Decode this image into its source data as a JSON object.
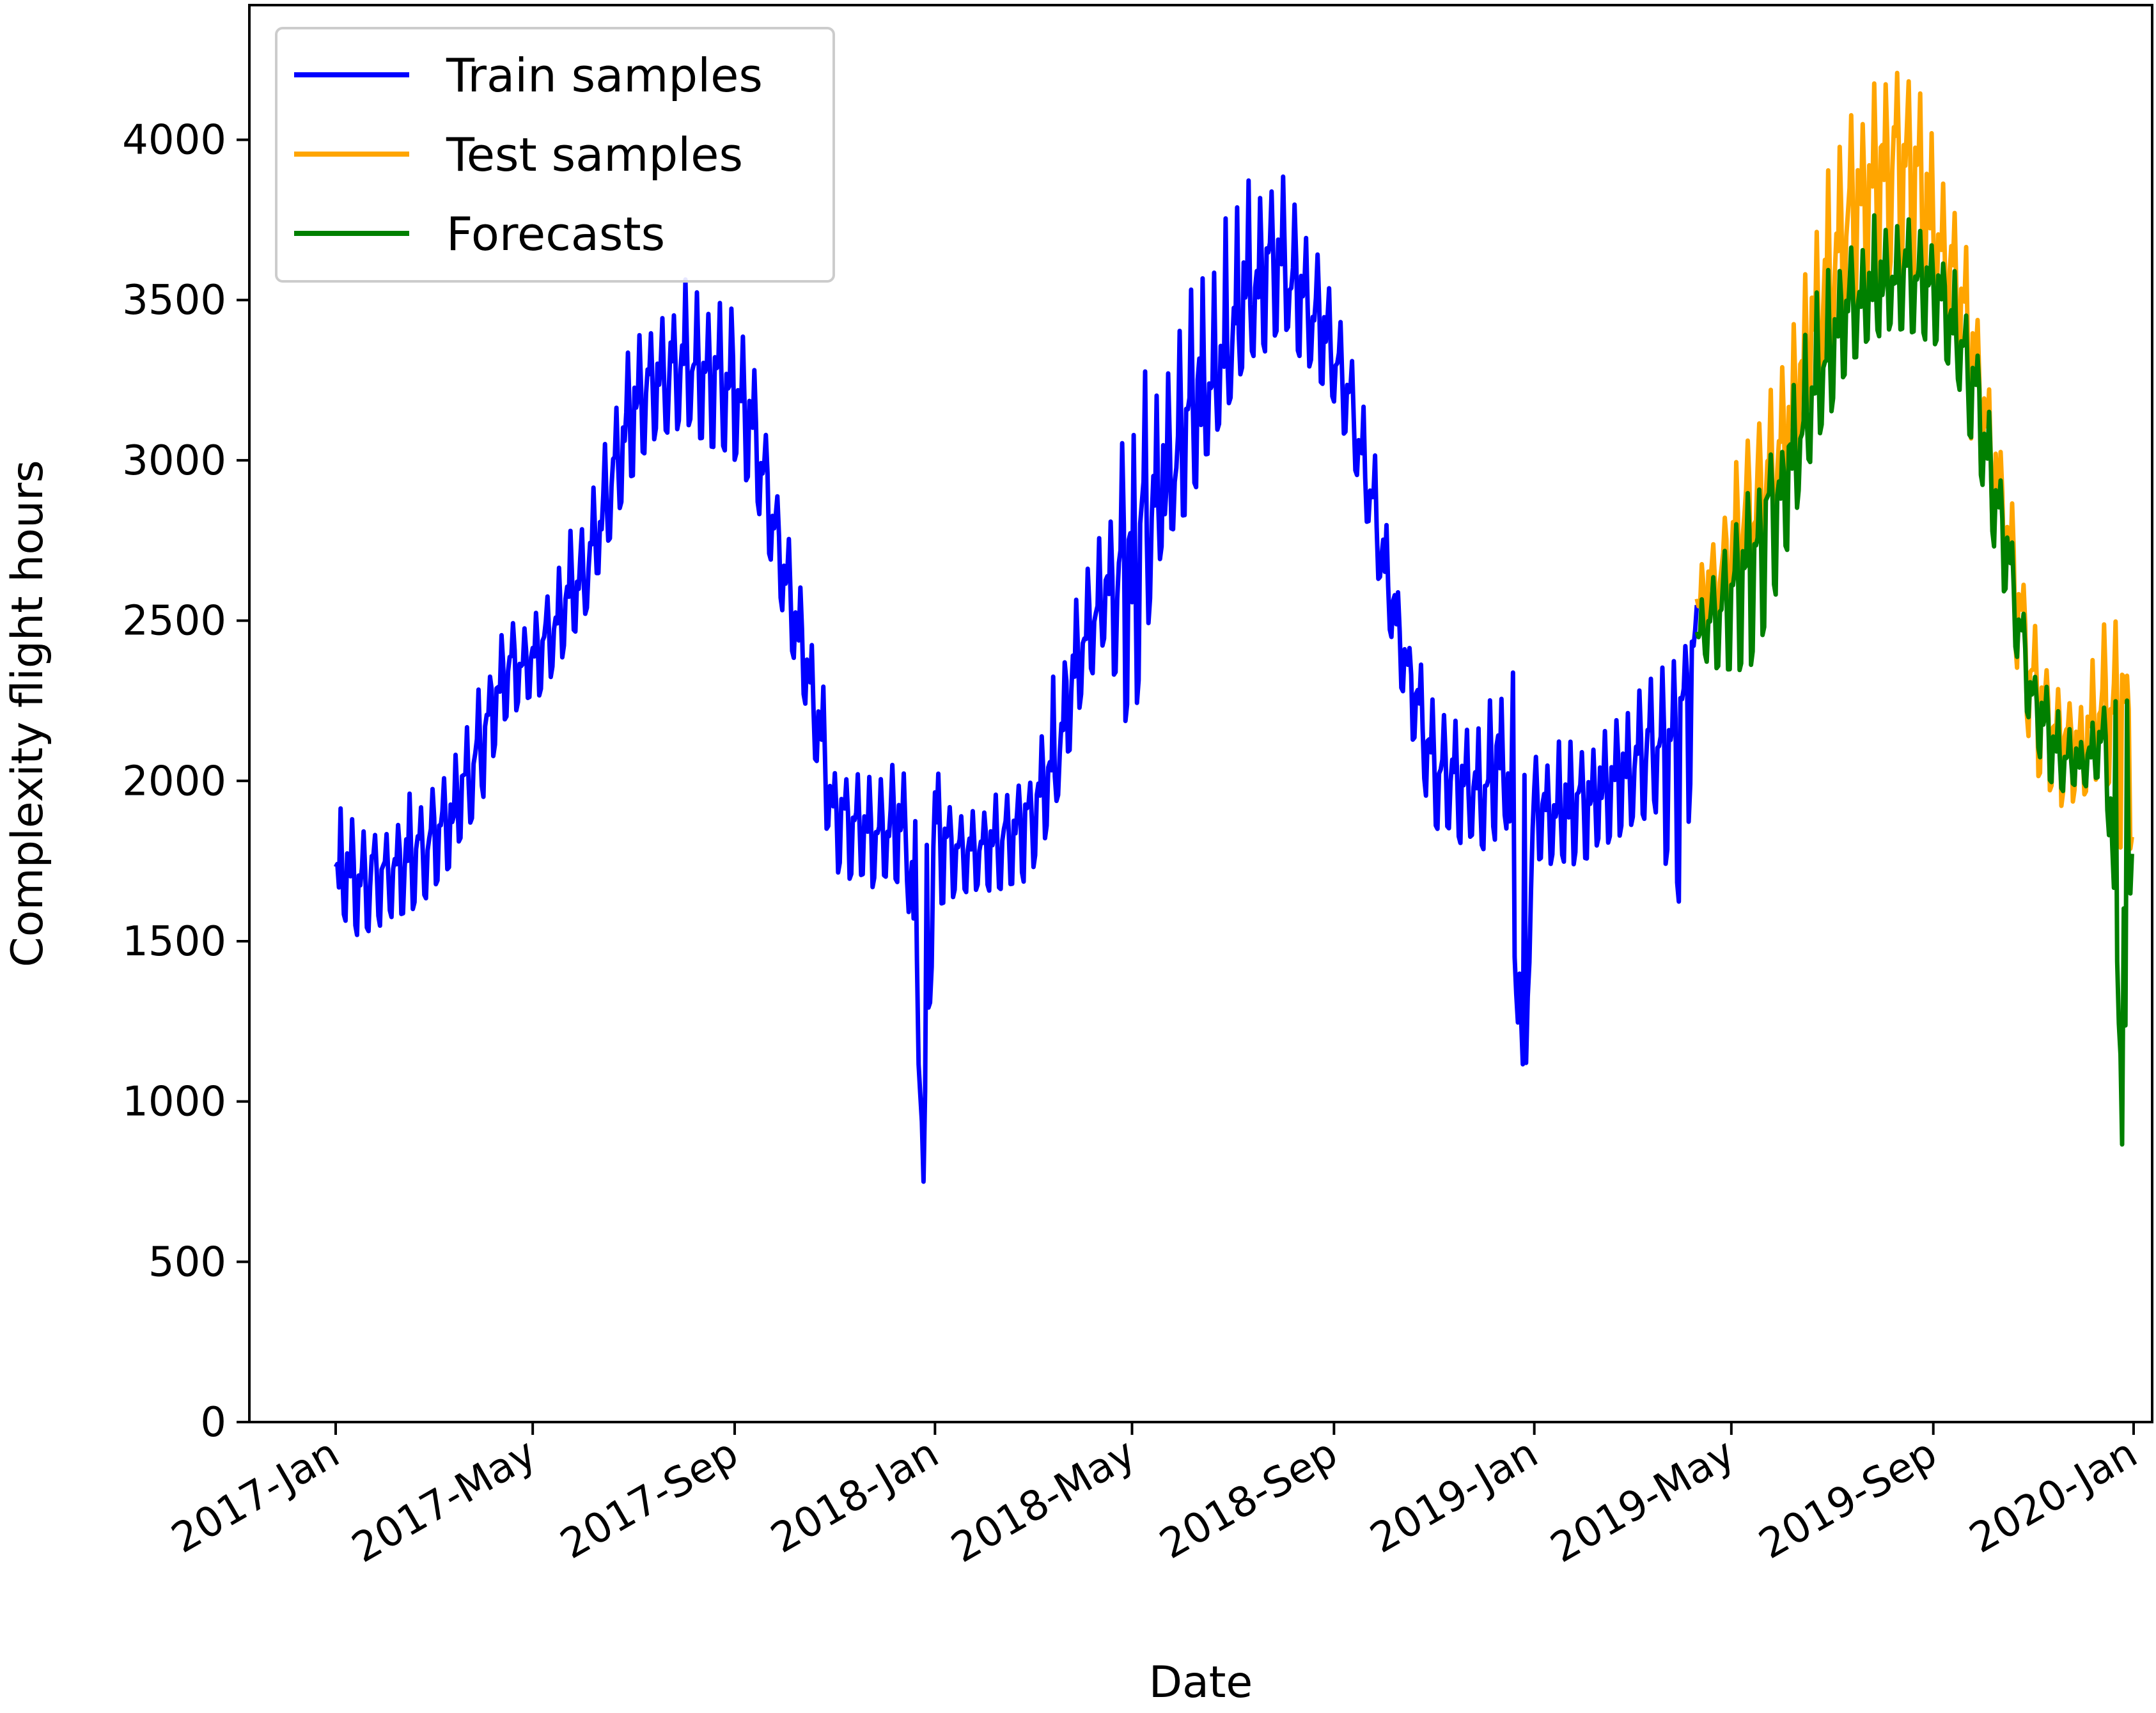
{
  "chart_data": {
    "type": "line",
    "xlabel": "Date",
    "ylabel": "Complexity flight hours",
    "ylim": [
      0,
      4420
    ],
    "xlim": [
      "2016-12-01",
      "2020-01-31"
    ],
    "yticks": [
      0,
      500,
      1000,
      1500,
      2000,
      2500,
      3000,
      3500,
      4000
    ],
    "xticks": [
      {
        "date": "2017-01-01",
        "label": "2017-Jan"
      },
      {
        "date": "2017-05-01",
        "label": "2017-May"
      },
      {
        "date": "2017-09-01",
        "label": "2017-Sep"
      },
      {
        "date": "2018-01-01",
        "label": "2018-Jan"
      },
      {
        "date": "2018-05-01",
        "label": "2018-May"
      },
      {
        "date": "2018-09-01",
        "label": "2018-Sep"
      },
      {
        "date": "2019-01-01",
        "label": "2019-Jan"
      },
      {
        "date": "2019-05-01",
        "label": "2019-May"
      },
      {
        "date": "2019-09-01",
        "label": "2019-Sep"
      },
      {
        "date": "2020-01-01",
        "label": "2020-Jan"
      }
    ],
    "grid": false,
    "legend_position": "top-left",
    "series": [
      {
        "name": "Train samples",
        "color": "#0000ff",
        "x": [
          "2017-01-01",
          "2017-01-15",
          "2017-02-01",
          "2017-02-15",
          "2017-03-01",
          "2017-03-15",
          "2017-04-01",
          "2017-04-15",
          "2017-05-01",
          "2017-05-15",
          "2017-06-01",
          "2017-06-15",
          "2017-07-01",
          "2017-07-15",
          "2017-08-01",
          "2017-08-15",
          "2017-09-01",
          "2017-09-15",
          "2017-10-01",
          "2017-10-15",
          "2017-11-01",
          "2017-11-15",
          "2017-12-01",
          "2017-12-15",
          "2017-12-25",
          "2018-01-01",
          "2018-01-15",
          "2018-02-01",
          "2018-02-15",
          "2018-03-01",
          "2018-03-15",
          "2018-04-01",
          "2018-04-15",
          "2018-05-01",
          "2018-05-15",
          "2018-06-01",
          "2018-06-15",
          "2018-07-01",
          "2018-07-15",
          "2018-08-01",
          "2018-08-15",
          "2018-09-01",
          "2018-09-15",
          "2018-10-01",
          "2018-10-15",
          "2018-11-01",
          "2018-11-15",
          "2018-12-01",
          "2018-12-15",
          "2018-12-25",
          "2019-01-01",
          "2019-01-15",
          "2019-02-01",
          "2019-02-15",
          "2019-03-01",
          "2019-03-15",
          "2019-04-01",
          "2019-04-10"
        ],
        "y": [
          1700,
          1680,
          1720,
          1760,
          1820,
          1900,
          2150,
          2350,
          2400,
          2500,
          2650,
          2850,
          3100,
          3250,
          3300,
          3280,
          3250,
          3050,
          2650,
          2350,
          1900,
          1880,
          1850,
          1880,
          870,
          1900,
          1780,
          1800,
          1850,
          1880,
          2050,
          2450,
          2600,
          2650,
          2850,
          3000,
          3200,
          3400,
          3550,
          3600,
          3500,
          3350,
          3100,
          2700,
          2350,
          2050,
          2000,
          1950,
          2100,
          980,
          1950,
          1900,
          1920,
          2000,
          2050,
          2100,
          2200,
          2500
        ],
        "hi": [
          2030,
          1930,
          1880,
          1970,
          2000,
          2100,
          2350,
          2500,
          2550,
          2680,
          2880,
          3100,
          3450,
          3520,
          3580,
          3500,
          3500,
          3250,
          2800,
          2600,
          2100,
          2050,
          2050,
          2050,
          2220,
          2100,
          1900,
          1950,
          2000,
          2050,
          2400,
          2650,
          2800,
          3300,
          3300,
          3520,
          3700,
          3850,
          3970,
          3900,
          3700,
          3600,
          3300,
          2900,
          2500,
          2250,
          2200,
          2200,
          2400,
          2430,
          2100,
          2150,
          2150,
          2200,
          2250,
          2350,
          2400,
          2550
        ],
        "lo": [
          1600,
          1510,
          1550,
          1580,
          1650,
          1750,
          1950,
          2200,
          2230,
          2350,
          2500,
          2700,
          2950,
          3050,
          3100,
          3050,
          3000,
          2850,
          2500,
          2200,
          1700,
          1680,
          1660,
          1650,
          870,
          1600,
          1630,
          1650,
          1650,
          1700,
          1900,
          2250,
          2450,
          2050,
          2650,
          2800,
          3000,
          3200,
          3300,
          3380,
          3300,
          3150,
          2950,
          2550,
          2200,
          1850,
          1800,
          1780,
          1850,
          980,
          1750,
          1720,
          1750,
          1800,
          1850,
          1900,
          1480,
          2300
        ]
      },
      {
        "name": "Test samples",
        "color": "#ffa500",
        "x": [
          "2019-04-10",
          "2019-05-01",
          "2019-05-15",
          "2019-06-01",
          "2019-06-15",
          "2019-07-01",
          "2019-07-15",
          "2019-08-01",
          "2019-08-15",
          "2019-09-01",
          "2019-09-15",
          "2019-10-01",
          "2019-10-15",
          "2019-11-01",
          "2019-11-15",
          "2019-12-01",
          "2019-12-15",
          "2019-12-25",
          "2019-12-31"
        ],
        "y": [
          2550,
          2700,
          2850,
          3000,
          3350,
          3600,
          3800,
          3900,
          3950,
          3750,
          3550,
          3150,
          2800,
          2300,
          2150,
          2100,
          2200,
          2300,
          2100
        ],
        "hi": [
          2650,
          2980,
          3200,
          3300,
          3650,
          3950,
          4100,
          4250,
          4320,
          4100,
          3800,
          3450,
          3000,
          2500,
          2300,
          2300,
          2540,
          2500,
          2320
        ],
        "lo": [
          2450,
          2380,
          2450,
          2800,
          3100,
          3300,
          3450,
          3550,
          3500,
          3400,
          3250,
          2900,
          2600,
          2000,
          1910,
          1950,
          2000,
          1760,
          1760
        ]
      },
      {
        "name": "Forecasts",
        "color": "#008000",
        "x": [
          "2019-04-10",
          "2019-05-01",
          "2019-05-15",
          "2019-06-01",
          "2019-06-15",
          "2019-07-01",
          "2019-07-15",
          "2019-08-01",
          "2019-08-15",
          "2019-09-01",
          "2019-09-15",
          "2019-10-01",
          "2019-10-15",
          "2019-11-01",
          "2019-11-15",
          "2019-12-01",
          "2019-12-15",
          "2019-12-25",
          "2019-12-31"
        ],
        "y": [
          2450,
          2600,
          2750,
          2900,
          3150,
          3350,
          3500,
          3550,
          3600,
          3550,
          3400,
          3100,
          2750,
          2250,
          2100,
          2050,
          2150,
          1050,
          2000
        ],
        "hi": [
          2550,
          2800,
          2950,
          3100,
          3400,
          3700,
          3730,
          3780,
          3780,
          3700,
          3650,
          3350,
          2870,
          2380,
          2250,
          2150,
          2250,
          2360,
          2260
        ],
        "lo": [
          2380,
          2330,
          2350,
          2650,
          2950,
          3150,
          3300,
          3380,
          3400,
          3350,
          3250,
          2900,
          2550,
          2100,
          1950,
          1980,
          2000,
          1050,
          1760
        ]
      }
    ]
  }
}
